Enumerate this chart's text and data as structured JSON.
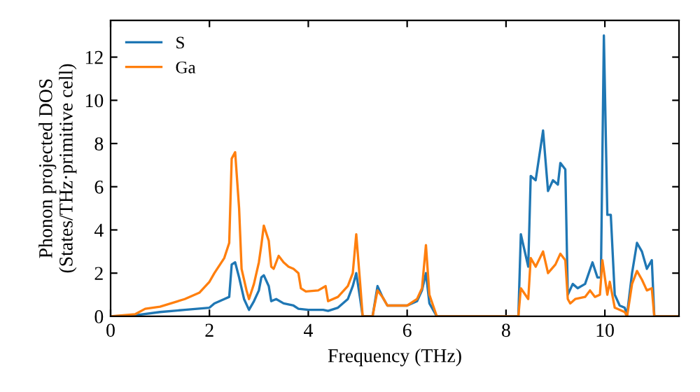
{
  "chart_data": {
    "type": "line",
    "xlabel": "Frequency (THz)",
    "ylabel": "Phonon projected DOS\n(States/THz·primitive cell)",
    "xlim": [
      0,
      11.5
    ],
    "ylim": [
      0,
      13.7
    ],
    "xticks": [
      0,
      2,
      4,
      6,
      8,
      10
    ],
    "yticks": [
      0,
      2,
      4,
      6,
      8,
      10,
      12
    ],
    "grid": false,
    "legend": "top left",
    "line_style": "solid",
    "marker": "none",
    "series": [
      {
        "name": "S",
        "color": "#1f77b4",
        "x": [
          0,
          0.5,
          1.0,
          1.5,
          2.0,
          2.1,
          2.3,
          2.4,
          2.45,
          2.52,
          2.6,
          2.7,
          2.8,
          2.9,
          3.0,
          3.05,
          3.1,
          3.2,
          3.25,
          3.35,
          3.5,
          3.7,
          3.8,
          4.0,
          4.3,
          4.4,
          4.6,
          4.8,
          4.9,
          4.97,
          5.05,
          5.1,
          5.3,
          5.4,
          5.5,
          5.6,
          6.0,
          6.2,
          6.3,
          6.38,
          6.45,
          6.6,
          8.25,
          8.3,
          8.45,
          8.5,
          8.6,
          8.75,
          8.85,
          8.95,
          9.05,
          9.1,
          9.2,
          9.25,
          9.35,
          9.45,
          9.6,
          9.75,
          9.85,
          9.92,
          9.98,
          10.05,
          10.12,
          10.2,
          10.3,
          10.4,
          10.45,
          10.55,
          10.65,
          10.75,
          10.85,
          10.95,
          11.0,
          11.5
        ],
        "values": [
          0,
          0.05,
          0.2,
          0.3,
          0.4,
          0.6,
          0.8,
          0.9,
          2.4,
          2.5,
          1.8,
          0.8,
          0.3,
          0.7,
          1.2,
          1.8,
          1.9,
          1.4,
          0.7,
          0.8,
          0.6,
          0.5,
          0.35,
          0.3,
          0.3,
          0.25,
          0.4,
          0.8,
          1.4,
          2.0,
          0.8,
          0,
          0,
          1.4,
          0.9,
          0.5,
          0.5,
          0.7,
          1.2,
          2.0,
          0.6,
          0,
          0,
          3.8,
          2.3,
          6.5,
          6.3,
          8.6,
          5.8,
          6.3,
          6.1,
          7.1,
          6.8,
          1.0,
          1.5,
          1.3,
          1.5,
          2.5,
          1.8,
          1.8,
          13.0,
          4.7,
          4.7,
          1.0,
          0.5,
          0.4,
          0.1,
          2.0,
          3.4,
          3.0,
          2.2,
          2.6,
          0,
          0
        ]
      },
      {
        "name": "Ga",
        "color": "#ff7f0e",
        "x": [
          0,
          0.5,
          0.7,
          1.0,
          1.5,
          1.8,
          2.0,
          2.1,
          2.3,
          2.4,
          2.45,
          2.52,
          2.6,
          2.65,
          2.75,
          2.8,
          2.9,
          3.0,
          3.05,
          3.1,
          3.2,
          3.25,
          3.3,
          3.4,
          3.5,
          3.6,
          3.7,
          3.8,
          3.85,
          3.95,
          4.2,
          4.35,
          4.4,
          4.6,
          4.8,
          4.9,
          4.97,
          5.05,
          5.1,
          5.3,
          5.4,
          5.5,
          5.6,
          6.0,
          6.2,
          6.3,
          6.38,
          6.45,
          6.6,
          8.25,
          8.3,
          8.45,
          8.5,
          8.6,
          8.75,
          8.85,
          9.0,
          9.1,
          9.2,
          9.25,
          9.3,
          9.4,
          9.6,
          9.7,
          9.8,
          9.9,
          9.95,
          10.05,
          10.1,
          10.2,
          10.4,
          10.45,
          10.55,
          10.65,
          10.75,
          10.85,
          10.95,
          11.0,
          11.5
        ],
        "values": [
          0,
          0.1,
          0.35,
          0.45,
          0.8,
          1.1,
          1.6,
          2.0,
          2.7,
          3.4,
          7.3,
          7.6,
          5.0,
          2.2,
          1.2,
          0.8,
          1.5,
          2.5,
          3.3,
          4.2,
          3.5,
          2.3,
          2.2,
          2.8,
          2.5,
          2.3,
          2.2,
          2.0,
          1.3,
          1.15,
          1.2,
          1.4,
          0.7,
          0.9,
          1.4,
          2.0,
          3.8,
          1.5,
          0,
          0,
          1.2,
          0.9,
          0.5,
          0.5,
          0.8,
          1.3,
          3.3,
          1.0,
          0,
          0,
          1.3,
          0.8,
          2.7,
          2.3,
          3.0,
          2.0,
          2.4,
          2.9,
          2.6,
          0.8,
          0.6,
          0.8,
          0.9,
          1.2,
          0.9,
          1.0,
          2.6,
          1.0,
          1.6,
          0.4,
          0.2,
          0,
          1.5,
          2.1,
          1.7,
          1.2,
          1.3,
          0,
          0
        ]
      }
    ]
  }
}
